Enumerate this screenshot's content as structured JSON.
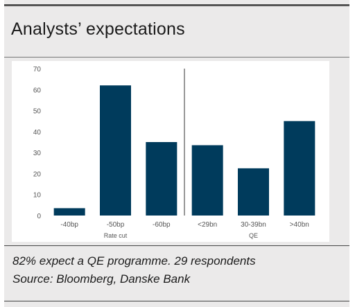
{
  "header": {
    "title": "Analysts’ expectations"
  },
  "footer": {
    "note": "82% expect a QE programme. 29 respondents",
    "source": "Source: Bloomberg, Danske Bank"
  },
  "chart_data": {
    "type": "bar",
    "title": "Analysts’ expectations",
    "categories": [
      "-40bp",
      "-50bp",
      "-60bp",
      "<29bn",
      "30-39bn",
      ">40bn"
    ],
    "values": [
      3.5,
      62,
      35,
      33.5,
      22.5,
      45
    ],
    "groups": [
      {
        "label": "Rate cut",
        "categories": [
          "-40bp",
          "-50bp",
          "-60bp"
        ]
      },
      {
        "label": "QE",
        "categories": [
          "<29bn",
          "30-39bn",
          ">40bn"
        ]
      }
    ],
    "yticks": [
      0,
      10,
      20,
      30,
      40,
      50,
      60,
      70
    ],
    "ylim": [
      0,
      70
    ],
    "xlabel": "",
    "ylabel": "",
    "grid": false,
    "legend": "none",
    "colors": {
      "bar": "#003b5c",
      "divider": "#333333",
      "axis_text": "#555555"
    }
  }
}
